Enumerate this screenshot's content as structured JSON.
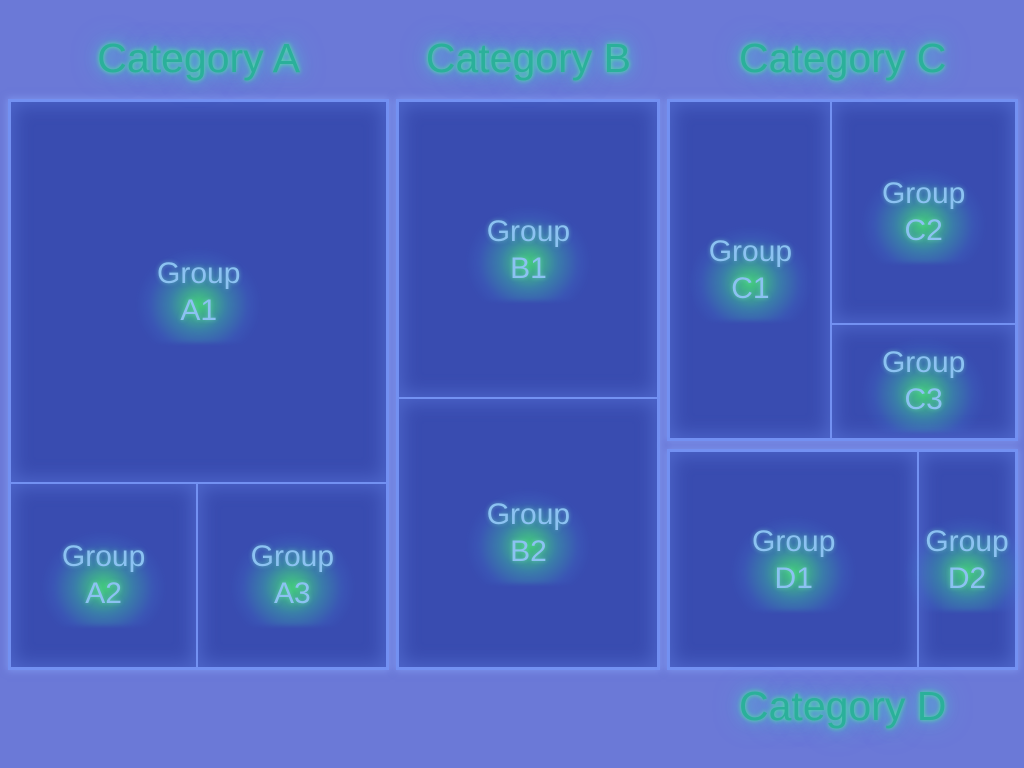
{
  "colors": {
    "background": "#6b79d7",
    "tile_fill": "#394cb0",
    "tile_border": "#7391f2",
    "category_title": "#2bb09a",
    "group_label": "#8cc2f2",
    "label_glow": "#46e672"
  },
  "chart_data": {
    "type": "treemap",
    "categories": [
      {
        "name": "Category A",
        "groups": [
          {
            "name": "Group A1",
            "value": 25.8
          },
          {
            "name": "Group A2",
            "value": 6.2
          },
          {
            "name": "Group A3",
            "value": 6.3
          }
        ]
      },
      {
        "name": "Category B",
        "groups": [
          {
            "name": "Group B1",
            "value": 13.9
          },
          {
            "name": "Group B2",
            "value": 12.6
          }
        ]
      },
      {
        "name": "Category C",
        "groups": [
          {
            "name": "Group C1",
            "value": 10.0
          },
          {
            "name": "Group C2",
            "value": 7.5
          },
          {
            "name": "Group C3",
            "value": 3.9
          }
        ]
      },
      {
        "name": "Category D",
        "groups": [
          {
            "name": "Group D1",
            "value": 9.9
          },
          {
            "name": "Group D2",
            "value": 3.9
          }
        ]
      }
    ]
  }
}
